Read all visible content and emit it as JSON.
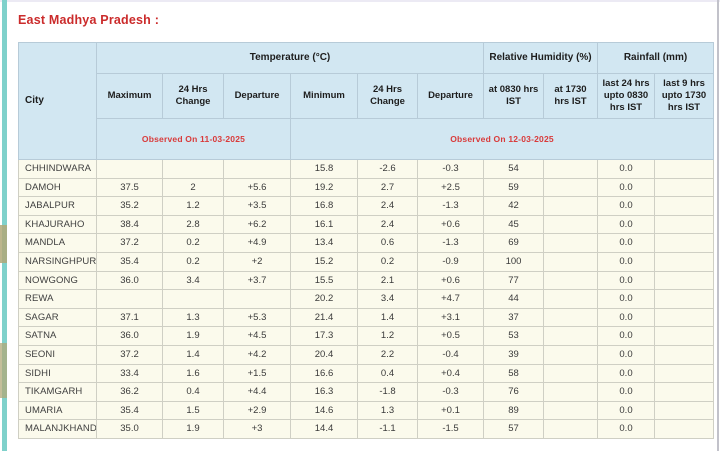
{
  "page": {
    "title": "East Madhya Pradesh :"
  },
  "colors": {
    "title_red": "#cb2b2b",
    "observed_red": "#d93a3a",
    "header_blue": "#d2e7f2",
    "row_cream": "#fbfaec",
    "left_strip_teal": "#7fd1cb",
    "left_strip_olive": "#b0a878"
  },
  "table": {
    "corner_header": "City",
    "group_headers": [
      {
        "label": "Temperature (°C)",
        "span": 6
      },
      {
        "label": "Relative Humidity (%)",
        "span": 2
      },
      {
        "label": "Rainfall (mm)",
        "span": 2
      }
    ],
    "sub_headers": [
      "Maximum",
      "24 Hrs Change",
      "Departure",
      "Minimum",
      "24 Hrs Change",
      "Departure",
      "at 0830 hrs IST",
      "at 1730 hrs IST",
      "last 24 hrs upto 0830 hrs IST",
      "last 9 hrs upto 1730 hrs IST"
    ],
    "observed_notes": [
      {
        "label": "Observed On 11-03-2025",
        "span": 3
      },
      {
        "label": "Observed On 12-03-2025",
        "span": 8
      }
    ],
    "rows": [
      {
        "city": "CHHINDWARA",
        "values": [
          "",
          "",
          "",
          "15.8",
          "-2.6",
          "-0.3",
          "54",
          "",
          "0.0",
          ""
        ]
      },
      {
        "city": "DAMOH",
        "values": [
          "37.5",
          "2",
          "+5.6",
          "19.2",
          "2.7",
          "+2.5",
          "59",
          "",
          "0.0",
          ""
        ]
      },
      {
        "city": "JABALPUR",
        "values": [
          "35.2",
          "1.2",
          "+3.5",
          "16.8",
          "2.4",
          "-1.3",
          "42",
          "",
          "0.0",
          ""
        ]
      },
      {
        "city": "KHAJURAHO",
        "values": [
          "38.4",
          "2.8",
          "+6.2",
          "16.1",
          "2.4",
          "+0.6",
          "45",
          "",
          "0.0",
          ""
        ]
      },
      {
        "city": "MANDLA",
        "values": [
          "37.2",
          "0.2",
          "+4.9",
          "13.4",
          "0.6",
          "-1.3",
          "69",
          "",
          "0.0",
          ""
        ]
      },
      {
        "city": "NARSINGHPUR",
        "values": [
          "35.4",
          "0.2",
          "+2",
          "15.2",
          "0.2",
          "-0.9",
          "100",
          "",
          "0.0",
          ""
        ]
      },
      {
        "city": "NOWGONG",
        "values": [
          "36.0",
          "3.4",
          "+3.7",
          "15.5",
          "2.1",
          "+0.6",
          "77",
          "",
          "0.0",
          ""
        ]
      },
      {
        "city": "REWA",
        "values": [
          "",
          "",
          "",
          "20.2",
          "3.4",
          "+4.7",
          "44",
          "",
          "0.0",
          ""
        ]
      },
      {
        "city": "SAGAR",
        "values": [
          "37.1",
          "1.3",
          "+5.3",
          "21.4",
          "1.4",
          "+3.1",
          "37",
          "",
          "0.0",
          ""
        ]
      },
      {
        "city": "SATNA",
        "values": [
          "36.0",
          "1.9",
          "+4.5",
          "17.3",
          "1.2",
          "+0.5",
          "53",
          "",
          "0.0",
          ""
        ]
      },
      {
        "city": "SEONI",
        "values": [
          "37.2",
          "1.4",
          "+4.2",
          "20.4",
          "2.2",
          "-0.4",
          "39",
          "",
          "0.0",
          ""
        ]
      },
      {
        "city": "SIDHI",
        "values": [
          "33.4",
          "1.6",
          "+1.5",
          "16.6",
          "0.4",
          "+0.4",
          "58",
          "",
          "0.0",
          ""
        ]
      },
      {
        "city": "TIKAMGARH",
        "values": [
          "36.2",
          "0.4",
          "+4.4",
          "16.3",
          "-1.8",
          "-0.3",
          "76",
          "",
          "0.0",
          ""
        ]
      },
      {
        "city": "UMARIA",
        "values": [
          "35.4",
          "1.5",
          "+2.9",
          "14.6",
          "1.3",
          "+0.1",
          "89",
          "",
          "0.0",
          ""
        ]
      },
      {
        "city": "MALANJKHAND",
        "values": [
          "35.0",
          "1.9",
          "+3",
          "14.4",
          "-1.1",
          "-1.5",
          "57",
          "",
          "0.0",
          ""
        ]
      }
    ]
  }
}
